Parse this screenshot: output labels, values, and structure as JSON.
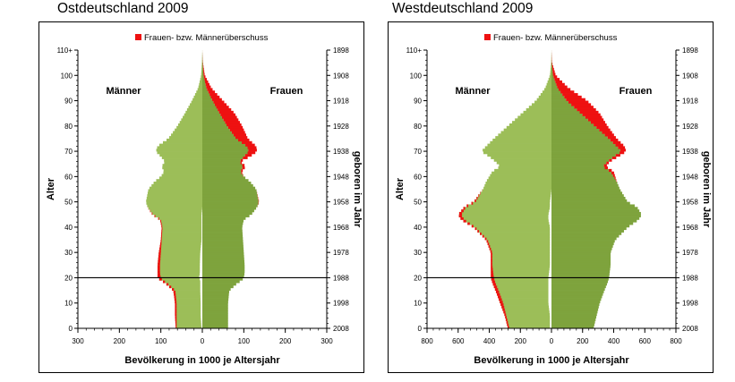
{
  "chart_data": [
    {
      "type": "bar",
      "title": "Ostdeutschland 2009",
      "legend": "Frauen- bzw. Männerüberschuss",
      "left_label": "Männer",
      "right_label": "Frauen",
      "xlabel": "Bevölkerung in 1000 je Altersjahr",
      "ylabel": "Alter",
      "y2label": "geboren im Jahr",
      "xlim": [
        -300,
        300
      ],
      "x_ticks": [
        -300,
        -200,
        -100,
        0,
        100,
        200,
        300
      ],
      "x_tick_labels": [
        "300",
        "200",
        "100",
        "0",
        "100",
        "200",
        "300"
      ],
      "ylim": [
        0,
        110
      ],
      "y_ticks": [
        0,
        10,
        20,
        30,
        40,
        50,
        60,
        70,
        80,
        90,
        100,
        110
      ],
      "y_tick_labels": [
        "0",
        "10",
        "20",
        "30",
        "40",
        "50",
        "60",
        "70",
        "80",
        "90",
        "100",
        "110+"
      ],
      "y2_ticks": [
        0,
        10,
        20,
        30,
        40,
        50,
        60,
        70,
        80,
        90,
        100,
        110
      ],
      "y2_tick_labels": [
        "2008",
        "1998",
        "1988",
        "1978",
        "1968",
        "1958",
        "1948",
        "1938",
        "1928",
        "1918",
        "1908",
        "1898"
      ],
      "reference_line_age": 20,
      "age_anchors": [
        0,
        5,
        10,
        15,
        18,
        19,
        20,
        22,
        25,
        30,
        35,
        40,
        43,
        45,
        48,
        50,
        55,
        58,
        60,
        62,
        64,
        66,
        68,
        70,
        72,
        75,
        80,
        85,
        90,
        95,
        100,
        105,
        110
      ],
      "men": [
        64,
        66,
        66,
        70,
        90,
        100,
        108,
        108,
        108,
        105,
        100,
        98,
        102,
        120,
        132,
        136,
        130,
        115,
        100,
        92,
        98,
        90,
        100,
        112,
        108,
        82,
        60,
        42,
        25,
        10,
        3,
        1,
        0
      ],
      "women": [
        62,
        62,
        62,
        65,
        85,
        95,
        100,
        102,
        102,
        100,
        98,
        96,
        100,
        118,
        132,
        137,
        130,
        115,
        100,
        95,
        105,
        92,
        115,
        132,
        130,
        110,
        96,
        78,
        50,
        22,
        6,
        1.5,
        0
      ],
      "colors": {
        "men": "#9cbe58",
        "women": "#7ea33d",
        "surplus": "#ee1111",
        "axis": "#000000"
      }
    },
    {
      "type": "bar",
      "title": "Westdeutschland 2009",
      "legend": "Frauen- bzw. Männerüberschuss",
      "left_label": "Männer",
      "right_label": "Frauen",
      "xlabel": "Bevölkerung in 1000 je Altersjahr",
      "ylabel": "Alter",
      "y2label": "geboren im Jahr",
      "xlim": [
        -800,
        800
      ],
      "x_ticks": [
        -800,
        -600,
        -400,
        -200,
        0,
        200,
        400,
        600,
        800
      ],
      "x_tick_labels": [
        "800",
        "600",
        "400",
        "200",
        "0",
        "200",
        "400",
        "600",
        "800"
      ],
      "ylim": [
        0,
        110
      ],
      "y_ticks": [
        0,
        10,
        20,
        30,
        40,
        50,
        60,
        70,
        80,
        90,
        100,
        110
      ],
      "y_tick_labels": [
        "0",
        "10",
        "20",
        "30",
        "40",
        "50",
        "60",
        "70",
        "80",
        "90",
        "100",
        "110+"
      ],
      "y2_ticks": [
        0,
        10,
        20,
        30,
        40,
        50,
        60,
        70,
        80,
        90,
        100,
        110
      ],
      "y2_tick_labels": [
        "2008",
        "1998",
        "1988",
        "1978",
        "1968",
        "1958",
        "1948",
        "1938",
        "1928",
        "1918",
        "1908",
        "1898"
      ],
      "reference_line_age": 20,
      "age_anchors": [
        0,
        5,
        10,
        15,
        18,
        20,
        25,
        30,
        35,
        40,
        43,
        45,
        48,
        50,
        55,
        58,
        60,
        62,
        64,
        66,
        68,
        70,
        72,
        75,
        80,
        85,
        90,
        95,
        100,
        105,
        110
      ],
      "men": [
        280,
        300,
        330,
        360,
        380,
        390,
        390,
        390,
        420,
        500,
        580,
        600,
        560,
        500,
        440,
        420,
        400,
        380,
        330,
        360,
        400,
        450,
        420,
        370,
        280,
        190,
        100,
        40,
        10,
        2,
        0
      ],
      "women": [
        270,
        290,
        310,
        340,
        360,
        370,
        380,
        380,
        410,
        490,
        560,
        580,
        550,
        490,
        440,
        420,
        410,
        400,
        350,
        375,
        430,
        480,
        470,
        420,
        360,
        310,
        230,
        110,
        28,
        4,
        0
      ],
      "colors": {
        "men": "#9cbe58",
        "women": "#7ea33d",
        "surplus": "#ee1111",
        "axis": "#000000"
      }
    }
  ]
}
